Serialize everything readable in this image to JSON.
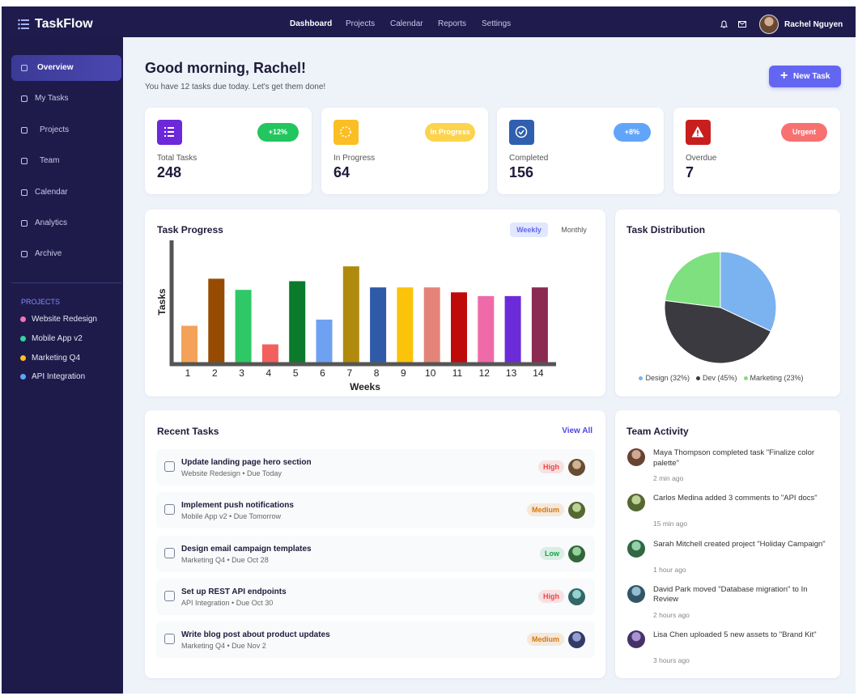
{
  "nav": {
    "brand": "TaskFlow",
    "links": [
      "Dashboard",
      "Projects",
      "Calendar",
      "Reports",
      "Settings"
    ],
    "user": "Rachel Nguyen"
  },
  "sidebar": {
    "menu": [
      "Overview",
      "My Tasks",
      "Projects",
      "Team",
      "Calendar",
      "Analytics",
      "Archive"
    ],
    "projects_heading": "PROJECTS",
    "projects": [
      {
        "name": "Website Redesign",
        "color": "#f472b6"
      },
      {
        "name": "Mobile App v2",
        "color": "#34d399"
      },
      {
        "name": "Marketing Q4",
        "color": "#fbbf24"
      },
      {
        "name": "API Integration",
        "color": "#60a5fa"
      }
    ]
  },
  "header": {
    "greeting": "Good morning, Rachel!",
    "subtitle": "You have 12 tasks due today. Let's get them done!",
    "button": "New Task"
  },
  "stats": [
    {
      "label": "Total Tasks",
      "value": 248,
      "badge": "+12%",
      "color": "#6d28d9",
      "badge_color": "#22c55e"
    },
    {
      "label": "In Progress",
      "value": 64,
      "badge": "In Progress",
      "color": "#fbbf24",
      "badge_color": "#fcd34d"
    },
    {
      "label": "Completed",
      "value": 156,
      "badge": "+8%",
      "color": "#2f5fae",
      "badge_color": "#60a5fa"
    },
    {
      "label": "Overdue",
      "value": 7,
      "badge": "Urgent",
      "color": "#c81e1e",
      "badge_color": "#f87171"
    }
  ],
  "progress_toggle": [
    "Weekly",
    "Monthly"
  ],
  "chart_data": [
    {
      "type": "bar",
      "title": "Task Progress",
      "xlabel": "Weeks",
      "ylabel": "Tasks",
      "categories": [
        "1",
        "2",
        "3",
        "4",
        "5",
        "6",
        "7",
        "8",
        "9",
        "10",
        "11",
        "12",
        "13",
        "14"
      ],
      "values": [
        3.1,
        6.9,
        6.0,
        1.6,
        6.7,
        3.6,
        7.9,
        6.2,
        6.2,
        6.2,
        5.8,
        5.5,
        5.5,
        6.2
      ],
      "colors": [
        "#f4a259",
        "#964b00",
        "#2ec866",
        "#f25f5c",
        "#0a7a2b",
        "#6fa1f2",
        "#b08a0c",
        "#2f5aa8",
        "#fbc30a",
        "#e48479",
        "#bf0a0a",
        "#ef6aa8",
        "#6c2bd9",
        "#8b2b53"
      ],
      "ylim": [
        0,
        10
      ]
    },
    {
      "type": "pie",
      "title": "Task Distribution",
      "labels": [
        "Design (32%)",
        "Dev (45%)",
        "Marketing (23%)"
      ],
      "values": [
        32,
        45,
        23
      ],
      "colors": [
        "#7ab3ef",
        "#3a3a40",
        "#7ee07e"
      ]
    }
  ],
  "recent": {
    "title": "Recent Tasks",
    "link": "View All",
    "tasks": [
      {
        "title": "Update landing page hero section",
        "meta": "Website Redesign • Due Today",
        "priority": "High",
        "priority_color": "#ef4444"
      },
      {
        "title": "Implement push notifications",
        "meta": "Mobile App v2 • Due Tomorrow",
        "priority": "Medium",
        "priority_color": "#d97706"
      },
      {
        "title": "Design email campaign templates",
        "meta": "Marketing Q4 • Due Oct 28",
        "priority": "Low",
        "priority_color": "#16a34a"
      },
      {
        "title": "Set up REST API endpoints",
        "meta": "API Integration • Due Oct 30",
        "priority": "High",
        "priority_color": "#ef4444"
      },
      {
        "title": "Write blog post about product updates",
        "meta": "Marketing Q4 • Due Nov 2",
        "priority": "Medium",
        "priority_color": "#d97706"
      }
    ]
  },
  "activity": {
    "title": "Team Activity",
    "items": [
      {
        "text": "Maya Thompson completed task \"Finalize color palette\"",
        "time": "2 min ago"
      },
      {
        "text": "Carlos Medina added 3 comments to \"API docs\"",
        "time": "15 min ago"
      },
      {
        "text": "Sarah Mitchell created project \"Holiday Campaign\"",
        "time": "1 hour ago"
      },
      {
        "text": "David Park moved \"Database migration\" to In Review",
        "time": "2 hours ago"
      },
      {
        "text": "Lisa Chen uploaded 5 new assets to \"Brand Kit\"",
        "time": "3 hours ago"
      }
    ]
  }
}
